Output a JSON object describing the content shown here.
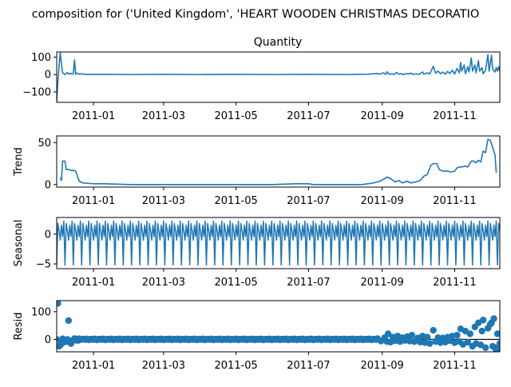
{
  "title": "composition for ('United Kingdom', 'HEART WOODEN CHRISTMAS DECORATIO",
  "colors": {
    "line": "#1f77b4",
    "axis": "#000000",
    "background": "#ffffff"
  },
  "chart_data": [
    {
      "type": "line",
      "title": "Quantity",
      "ylabel": "",
      "ylim": [
        -160,
        130
      ],
      "yticks": [
        100,
        0,
        -100
      ],
      "ytick_labels": [
        "100",
        "0",
        "−100"
      ],
      "x_range": [
        "2010-12-01",
        "2011-12-09"
      ],
      "xticks": [
        "2011-01-01",
        "2011-03-01",
        "2011-05-01",
        "2011-07-01",
        "2011-09-01",
        "2011-11-01"
      ],
      "xtick_labels": [
        "2011-01",
        "2011-03",
        "2011-05",
        "2011-07",
        "2011-09",
        "2011-11"
      ],
      "series": [
        {
          "points": [
            [
              "2010-12-01",
              -155
            ],
            [
              "2010-12-02",
              -40
            ],
            [
              "2010-12-03",
              50
            ],
            [
              "2010-12-04",
              125
            ],
            [
              "2010-12-05",
              60
            ],
            [
              "2010-12-06",
              10
            ],
            [
              "2010-12-07",
              5
            ],
            [
              "2010-12-08",
              0
            ],
            [
              "2010-12-09",
              5
            ],
            [
              "2010-12-10",
              12
            ],
            [
              "2010-12-11",
              5
            ],
            [
              "2010-12-12",
              2
            ],
            [
              "2010-12-13",
              8
            ],
            [
              "2010-12-14",
              2
            ],
            [
              "2010-12-15",
              5
            ],
            [
              "2010-12-16",
              85
            ],
            [
              "2010-12-17",
              2
            ],
            [
              "2010-12-18",
              8
            ],
            [
              "2010-12-19",
              5
            ],
            [
              "2010-12-20",
              2
            ],
            [
              "2010-12-21",
              3
            ],
            [
              "2010-12-22",
              5
            ],
            [
              "2010-12-23",
              2
            ],
            [
              "2010-12-27",
              1
            ],
            [
              "2011-01-04",
              1
            ],
            [
              "2011-01-15",
              1
            ],
            [
              "2011-02-01",
              0
            ],
            [
              "2011-03-01",
              1
            ],
            [
              "2011-04-01",
              0
            ],
            [
              "2011-05-01",
              1
            ],
            [
              "2011-06-01",
              0
            ],
            [
              "2011-07-01",
              1
            ],
            [
              "2011-08-01",
              0
            ],
            [
              "2011-08-20",
              2
            ],
            [
              "2011-08-28",
              6
            ],
            [
              "2011-08-30",
              2
            ],
            [
              "2011-09-02",
              10
            ],
            [
              "2011-09-04",
              1
            ],
            [
              "2011-09-05",
              16
            ],
            [
              "2011-09-07",
              2
            ],
            [
              "2011-09-09",
              4
            ],
            [
              "2011-09-11",
              1
            ],
            [
              "2011-09-13",
              12
            ],
            [
              "2011-09-15",
              2
            ],
            [
              "2011-09-17",
              5
            ],
            [
              "2011-09-19",
              0
            ],
            [
              "2011-09-21",
              6
            ],
            [
              "2011-09-23",
              3
            ],
            [
              "2011-09-25",
              8
            ],
            [
              "2011-09-27",
              1
            ],
            [
              "2011-09-30",
              4
            ],
            [
              "2011-10-02",
              1
            ],
            [
              "2011-10-05",
              15
            ],
            [
              "2011-10-06",
              2
            ],
            [
              "2011-10-09",
              10
            ],
            [
              "2011-10-11",
              3
            ],
            [
              "2011-10-14",
              48
            ],
            [
              "2011-10-16",
              8
            ],
            [
              "2011-10-18",
              20
            ],
            [
              "2011-10-20",
              5
            ],
            [
              "2011-10-22",
              14
            ],
            [
              "2011-10-24",
              2
            ],
            [
              "2011-10-26",
              18
            ],
            [
              "2011-10-28",
              6
            ],
            [
              "2011-10-30",
              25
            ],
            [
              "2011-11-01",
              3
            ],
            [
              "2011-11-03",
              35
            ],
            [
              "2011-11-05",
              10
            ],
            [
              "2011-11-06",
              70
            ],
            [
              "2011-11-07",
              20
            ],
            [
              "2011-11-09",
              55
            ],
            [
              "2011-11-10",
              5
            ],
            [
              "2011-11-12",
              45
            ],
            [
              "2011-11-13",
              15
            ],
            [
              "2011-11-15",
              95
            ],
            [
              "2011-11-16",
              20
            ],
            [
              "2011-11-18",
              55
            ],
            [
              "2011-11-19",
              10
            ],
            [
              "2011-11-21",
              80
            ],
            [
              "2011-11-22",
              20
            ],
            [
              "2011-11-24",
              40
            ],
            [
              "2011-11-25",
              5
            ],
            [
              "2011-11-27",
              25
            ],
            [
              "2011-11-29",
              115
            ],
            [
              "2011-11-30",
              20
            ],
            [
              "2011-12-02",
              110
            ],
            [
              "2011-12-03",
              30
            ],
            [
              "2011-12-05",
              15
            ],
            [
              "2011-12-06",
              40
            ],
            [
              "2011-12-07",
              20
            ],
            [
              "2011-12-08",
              45
            ],
            [
              "2011-12-09",
              20
            ]
          ]
        }
      ]
    },
    {
      "type": "line",
      "title": "",
      "ylabel": "Trend",
      "ylim": [
        -3,
        58
      ],
      "yticks": [
        50,
        0
      ],
      "ytick_labels": [
        "50",
        "0"
      ],
      "x_range": [
        "2010-12-01",
        "2011-12-09"
      ],
      "xticks": [
        "2011-01-01",
        "2011-03-01",
        "2011-05-01",
        "2011-07-01",
        "2011-09-01",
        "2011-11-01"
      ],
      "xtick_labels": [
        "2011-01",
        "2011-03",
        "2011-05",
        "2011-07",
        "2011-09",
        "2011-11"
      ],
      "series": [
        {
          "points": [
            [
              "2010-12-04",
              8
            ],
            [
              "2010-12-05",
              5
            ],
            [
              "2010-12-06",
              28
            ],
            [
              "2010-12-08",
              28
            ],
            [
              "2010-12-09",
              18
            ],
            [
              "2010-12-11",
              18
            ],
            [
              "2010-12-13",
              17
            ],
            [
              "2010-12-15",
              17
            ],
            [
              "2010-12-17",
              16
            ],
            [
              "2010-12-18",
              12
            ],
            [
              "2010-12-20",
              4
            ],
            [
              "2010-12-23",
              2
            ],
            [
              "2011-01-01",
              1
            ],
            [
              "2011-01-10",
              1
            ],
            [
              "2011-02-01",
              0
            ],
            [
              "2011-03-01",
              0
            ],
            [
              "2011-04-01",
              0
            ],
            [
              "2011-05-01",
              0
            ],
            [
              "2011-06-01",
              0
            ],
            [
              "2011-06-20",
              1
            ],
            [
              "2011-07-01",
              1
            ],
            [
              "2011-07-05",
              0
            ],
            [
              "2011-08-01",
              0
            ],
            [
              "2011-08-15",
              0
            ],
            [
              "2011-08-20",
              1
            ],
            [
              "2011-08-25",
              2
            ],
            [
              "2011-08-30",
              4
            ],
            [
              "2011-09-03",
              7
            ],
            [
              "2011-09-05",
              9
            ],
            [
              "2011-09-08",
              7
            ],
            [
              "2011-09-12",
              3
            ],
            [
              "2011-09-15",
              5
            ],
            [
              "2011-09-18",
              2
            ],
            [
              "2011-09-22",
              4
            ],
            [
              "2011-09-25",
              2
            ],
            [
              "2011-09-29",
              3
            ],
            [
              "2011-10-03",
              5
            ],
            [
              "2011-10-06",
              10
            ],
            [
              "2011-10-09",
              12
            ],
            [
              "2011-10-12",
              23
            ],
            [
              "2011-10-14",
              25
            ],
            [
              "2011-10-17",
              25
            ],
            [
              "2011-10-19",
              18
            ],
            [
              "2011-10-22",
              16
            ],
            [
              "2011-10-26",
              16
            ],
            [
              "2011-10-29",
              15
            ],
            [
              "2011-11-01",
              16
            ],
            [
              "2011-11-03",
              20
            ],
            [
              "2011-11-05",
              21
            ],
            [
              "2011-11-07",
              21
            ],
            [
              "2011-11-10",
              22
            ],
            [
              "2011-11-12",
              21
            ],
            [
              "2011-11-15",
              28
            ],
            [
              "2011-11-17",
              28
            ],
            [
              "2011-11-19",
              26
            ],
            [
              "2011-11-21",
              29
            ],
            [
              "2011-11-23",
              27
            ],
            [
              "2011-11-25",
              40
            ],
            [
              "2011-11-27",
              38
            ],
            [
              "2011-11-29",
              54
            ],
            [
              "2011-12-01",
              53
            ],
            [
              "2011-12-03",
              44
            ],
            [
              "2011-12-05",
              35
            ],
            [
              "2011-12-06",
              14
            ]
          ]
        }
      ]
    },
    {
      "type": "line",
      "title": "",
      "ylabel": "Seasonal",
      "ylim": [
        -5.8,
        2.8
      ],
      "yticks": [
        0,
        -5
      ],
      "ytick_labels": [
        "0",
        "−5"
      ],
      "x_range": [
        "2010-12-01",
        "2011-12-09"
      ],
      "xticks": [
        "2011-01-01",
        "2011-03-01",
        "2011-05-01",
        "2011-07-01",
        "2011-09-01",
        "2011-11-01"
      ],
      "xtick_labels": [
        "2011-01",
        "2011-03",
        "2011-05",
        "2011-07",
        "2011-09",
        "2011-11"
      ],
      "period_days": 7,
      "pattern": [
        -5.2,
        1.8,
        0.6,
        -1.0,
        1.5,
        -0.4,
        2.2
      ]
    },
    {
      "type": "scatter",
      "title": "",
      "ylabel": "Resid",
      "ylim": [
        -45,
        140
      ],
      "yticks": [
        100,
        0
      ],
      "ytick_labels": [
        "100",
        "0"
      ],
      "x_range": [
        "2010-12-01",
        "2011-12-09"
      ],
      "xticks": [
        "2011-01-01",
        "2011-03-01",
        "2011-05-01",
        "2011-07-01",
        "2011-09-01",
        "2011-11-01"
      ],
      "xtick_labels": [
        "2011-01",
        "2011-03",
        "2011-05",
        "2011-07",
        "2011-09",
        "2011-11"
      ],
      "zero_line": true,
      "points": [
        [
          "2010-12-01",
          0
        ],
        [
          "2010-12-02",
          130
        ],
        [
          "2010-12-03",
          -25
        ],
        [
          "2010-12-04",
          -20
        ],
        [
          "2010-12-05",
          -15
        ],
        [
          "2010-12-06",
          2
        ],
        [
          "2010-12-07",
          -10
        ],
        [
          "2010-12-08",
          -5
        ],
        [
          "2010-12-09",
          -8
        ],
        [
          "2010-12-10",
          0
        ],
        [
          "2010-12-11",
          68
        ],
        [
          "2010-12-12",
          -10
        ],
        [
          "2010-12-13",
          -15
        ],
        [
          "2010-12-14",
          -5
        ],
        [
          "2010-12-15",
          -2
        ],
        [
          "2010-12-16",
          3
        ],
        [
          "2010-12-17",
          -3
        ],
        [
          "2010-12-18",
          1
        ],
        [
          "2010-12-19",
          -4
        ],
        [
          "2010-12-20",
          2
        ],
        [
          "2010-12-21",
          -1
        ],
        [
          "2010-12-22",
          0
        ],
        [
          "2010-12-23",
          1
        ],
        [
          "2011-08-28",
          3
        ],
        [
          "2011-08-31",
          -6
        ],
        [
          "2011-09-03",
          6
        ],
        [
          "2011-09-05",
          -8
        ],
        [
          "2011-09-06",
          20
        ],
        [
          "2011-09-08",
          -10
        ],
        [
          "2011-09-10",
          8
        ],
        [
          "2011-09-12",
          -5
        ],
        [
          "2011-09-14",
          12
        ],
        [
          "2011-09-16",
          -8
        ],
        [
          "2011-09-18",
          6
        ],
        [
          "2011-09-20",
          -4
        ],
        [
          "2011-09-22",
          10
        ],
        [
          "2011-09-24",
          -6
        ],
        [
          "2011-09-26",
          15
        ],
        [
          "2011-09-28",
          -8
        ],
        [
          "2011-10-01",
          5
        ],
        [
          "2011-10-03",
          -10
        ],
        [
          "2011-10-05",
          12
        ],
        [
          "2011-10-07",
          -12
        ],
        [
          "2011-10-09",
          8
        ],
        [
          "2011-10-11",
          -15
        ],
        [
          "2011-10-14",
          33
        ],
        [
          "2011-10-16",
          -8
        ],
        [
          "2011-10-18",
          6
        ],
        [
          "2011-10-20",
          -12
        ],
        [
          "2011-10-22",
          5
        ],
        [
          "2011-10-24",
          -10
        ],
        [
          "2011-10-26",
          8
        ],
        [
          "2011-10-28",
          -5
        ],
        [
          "2011-10-30",
          12
        ],
        [
          "2011-11-01",
          -12
        ],
        [
          "2011-11-03",
          15
        ],
        [
          "2011-11-05",
          -8
        ],
        [
          "2011-11-06",
          38
        ],
        [
          "2011-11-08",
          -18
        ],
        [
          "2011-11-10",
          30
        ],
        [
          "2011-11-12",
          -10
        ],
        [
          "2011-11-14",
          20
        ],
        [
          "2011-11-16",
          -25
        ],
        [
          "2011-11-18",
          45
        ],
        [
          "2011-11-19",
          -15
        ],
        [
          "2011-11-21",
          60
        ],
        [
          "2011-11-23",
          -20
        ],
        [
          "2011-11-24",
          30
        ],
        [
          "2011-11-25",
          70
        ],
        [
          "2011-11-27",
          -30
        ],
        [
          "2011-11-29",
          40
        ],
        [
          "2011-12-01",
          55
        ],
        [
          "2011-12-02",
          60
        ],
        [
          "2011-12-03",
          -25
        ],
        [
          "2011-12-04",
          75
        ],
        [
          "2011-12-05",
          -30
        ],
        [
          "2011-12-06",
          -40
        ],
        [
          "2011-12-07",
          20
        ],
        [
          "2011-12-08",
          -35
        ],
        [
          "2011-12-09",
          -15
        ]
      ]
    }
  ]
}
